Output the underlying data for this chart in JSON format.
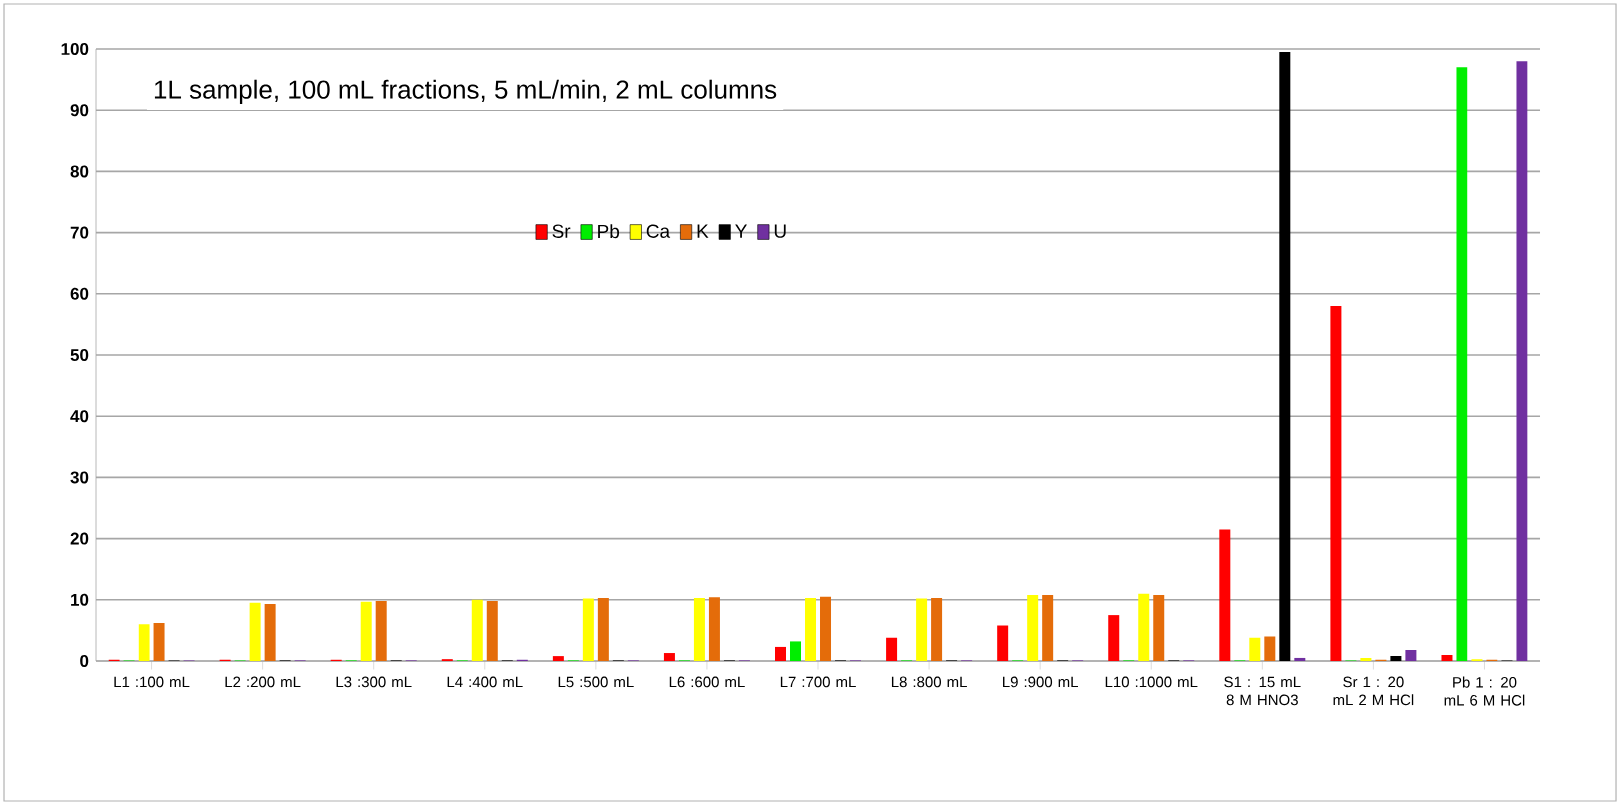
{
  "chart_data": {
    "type": "bar",
    "categories": [
      "L1 :100 mL",
      "L2 :200 mL",
      "L3 :300 mL",
      "L4 :400 mL",
      "L5 :500 mL",
      "L6 :600 mL",
      "L7 :700 mL",
      "L8 :800 mL",
      "L9 :900 mL",
      "L10 :1000 mL",
      "S1 : 15 mL 8 M HNO3",
      "Sr 1 : 20 mL 2 M HCl",
      "Pb 1 : 20 mL 6 M HCl"
    ],
    "series": [
      {
        "name": "Sr",
        "color": "#ff0000",
        "values": [
          0.2,
          0.2,
          0.2,
          0.3,
          0.8,
          1.3,
          2.3,
          3.8,
          5.8,
          7.5,
          21.5,
          58,
          1
        ]
      },
      {
        "name": "Pb",
        "color": "#00ee00",
        "values": [
          0.1,
          0.1,
          0.1,
          0.1,
          0.1,
          0.1,
          3.2,
          0.1,
          0.1,
          0.1,
          0.1,
          0.1,
          97
        ]
      },
      {
        "name": "Ca",
        "color": "#ffff00",
        "values": [
          6,
          9.5,
          9.7,
          10,
          10.2,
          10.3,
          10.3,
          10.2,
          10.8,
          11,
          3.8,
          0.5,
          0.3
        ]
      },
      {
        "name": "K",
        "color": "#e46c0a",
        "values": [
          6.2,
          9.3,
          9.8,
          9.8,
          10.3,
          10.4,
          10.5,
          10.3,
          10.8,
          10.8,
          4,
          0.2,
          0.2
        ]
      },
      {
        "name": "Y",
        "color": "#000000",
        "values": [
          0.1,
          0.1,
          0.1,
          0.1,
          0.1,
          0.1,
          0.1,
          0.1,
          0.1,
          0.1,
          99.5,
          0.8,
          0.1
        ]
      },
      {
        "name": "U",
        "color": "#7030a0",
        "values": [
          0.1,
          0.1,
          0.1,
          0.2,
          0.1,
          0.1,
          0.1,
          0.1,
          0.1,
          0.1,
          0.5,
          1.8,
          98
        ]
      }
    ],
    "ylim": [
      0,
      100
    ],
    "yticks": [
      0,
      10,
      20,
      30,
      40,
      50,
      60,
      70,
      80,
      90,
      100
    ],
    "grid": "y",
    "legend": "top",
    "annotations": [
      "1L sample, 100 mL fractions, 5 mL/min, 2 mL columns"
    ]
  }
}
